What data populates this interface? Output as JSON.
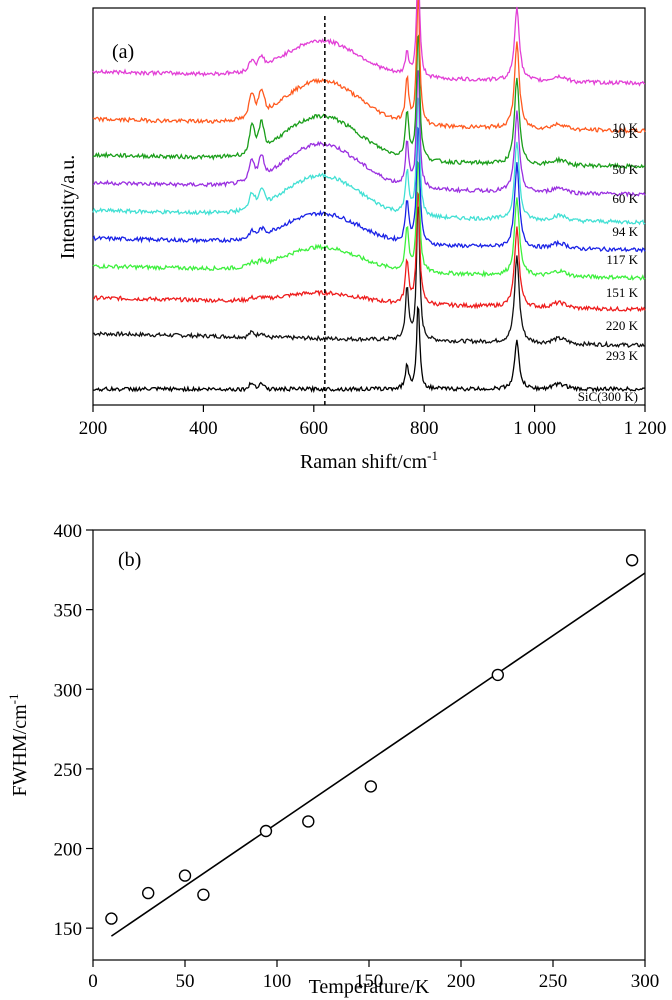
{
  "chart_data": [
    {
      "type": "line",
      "panel_label": "(a)",
      "xlabel": "Raman shift/cm",
      "xlabel_sup": "-1",
      "ylabel": "Intensity/a.u.",
      "xlim": [
        200,
        1200
      ],
      "xticks": [
        200,
        400,
        600,
        800,
        1000,
        1200
      ],
      "xtick_labels": [
        "200",
        "400",
        "600",
        "800",
        "1 000",
        "1 200"
      ],
      "annotations": [
        {
          "type": "dashed-vertical-line",
          "x": 620
        }
      ],
      "series": [
        {
          "name": "10 K",
          "color": "#e23fd6",
          "baseline": 0.84,
          "broad": 0.09,
          "doublet": 0.025,
          "p770": 0.06,
          "p790": 0.3,
          "p970": 0.19
        },
        {
          "name": "30 K",
          "color": "#ff5a1f",
          "baseline": 0.72,
          "broad": 0.11,
          "doublet": 0.06,
          "p770": 0.11,
          "p790": 0.34,
          "p970": 0.22
        },
        {
          "name": "50 K",
          "color": "#1a9e1a",
          "baseline": 0.63,
          "broad": 0.11,
          "doublet": 0.065,
          "p770": 0.12,
          "p790": 0.34,
          "p970": 0.22
        },
        {
          "name": "60 K",
          "color": "#9a30e0",
          "baseline": 0.56,
          "broad": 0.11,
          "doublet": 0.05,
          "p770": 0.11,
          "p790": 0.32,
          "p970": 0.2
        },
        {
          "name": "94 K",
          "color": "#42e0d4",
          "baseline": 0.49,
          "broad": 0.1,
          "doublet": 0.04,
          "p770": 0.11,
          "p790": 0.32,
          "p970": 0.2
        },
        {
          "name": "117 K",
          "color": "#1a22e6",
          "baseline": 0.42,
          "broad": 0.075,
          "doublet": 0.015,
          "p770": 0.11,
          "p790": 0.32,
          "p970": 0.21
        },
        {
          "name": "151 K",
          "color": "#3ef03e",
          "baseline": 0.35,
          "broad": 0.06,
          "doublet": 0.01,
          "p770": 0.11,
          "p790": 0.3,
          "p970": 0.2
        },
        {
          "name": "220 K",
          "color": "#ee1c1c",
          "baseline": 0.27,
          "broad": 0.025,
          "doublet": 0.005,
          "p770": 0.11,
          "p790": 0.3,
          "p970": 0.2
        },
        {
          "name": "293 K",
          "color": "#111111",
          "baseline": 0.18,
          "broad": 0.0,
          "doublet": 0.012,
          "p770": 0.13,
          "p790": 0.36,
          "p970": 0.22
        }
      ],
      "series_labels": [
        "10 K",
        "30 K",
        "50 K",
        "60 K",
        "94 K",
        "117 K",
        "151 K",
        "220 K",
        "293 K",
        "SiC(300 K)"
      ]
    },
    {
      "type": "scatter",
      "panel_label": "(b)",
      "xlabel": "Temperature/K",
      "ylabel": "FWHM/cm",
      "ylabel_sup": "-1",
      "xlim": [
        0,
        300
      ],
      "ylim": [
        130,
        400
      ],
      "xticks": [
        0,
        50,
        100,
        150,
        200,
        250,
        300
      ],
      "yticks": [
        150,
        200,
        250,
        300,
        350,
        400
      ],
      "points": [
        {
          "x": 10,
          "y": 156
        },
        {
          "x": 30,
          "y": 172
        },
        {
          "x": 50,
          "y": 183
        },
        {
          "x": 60,
          "y": 171
        },
        {
          "x": 94,
          "y": 211
        },
        {
          "x": 117,
          "y": 217
        },
        {
          "x": 151,
          "y": 239
        },
        {
          "x": 220,
          "y": 309
        },
        {
          "x": 293,
          "y": 381
        }
      ],
      "fit_line": {
        "x": [
          10,
          300
        ],
        "y": [
          145,
          373
        ]
      }
    }
  ]
}
